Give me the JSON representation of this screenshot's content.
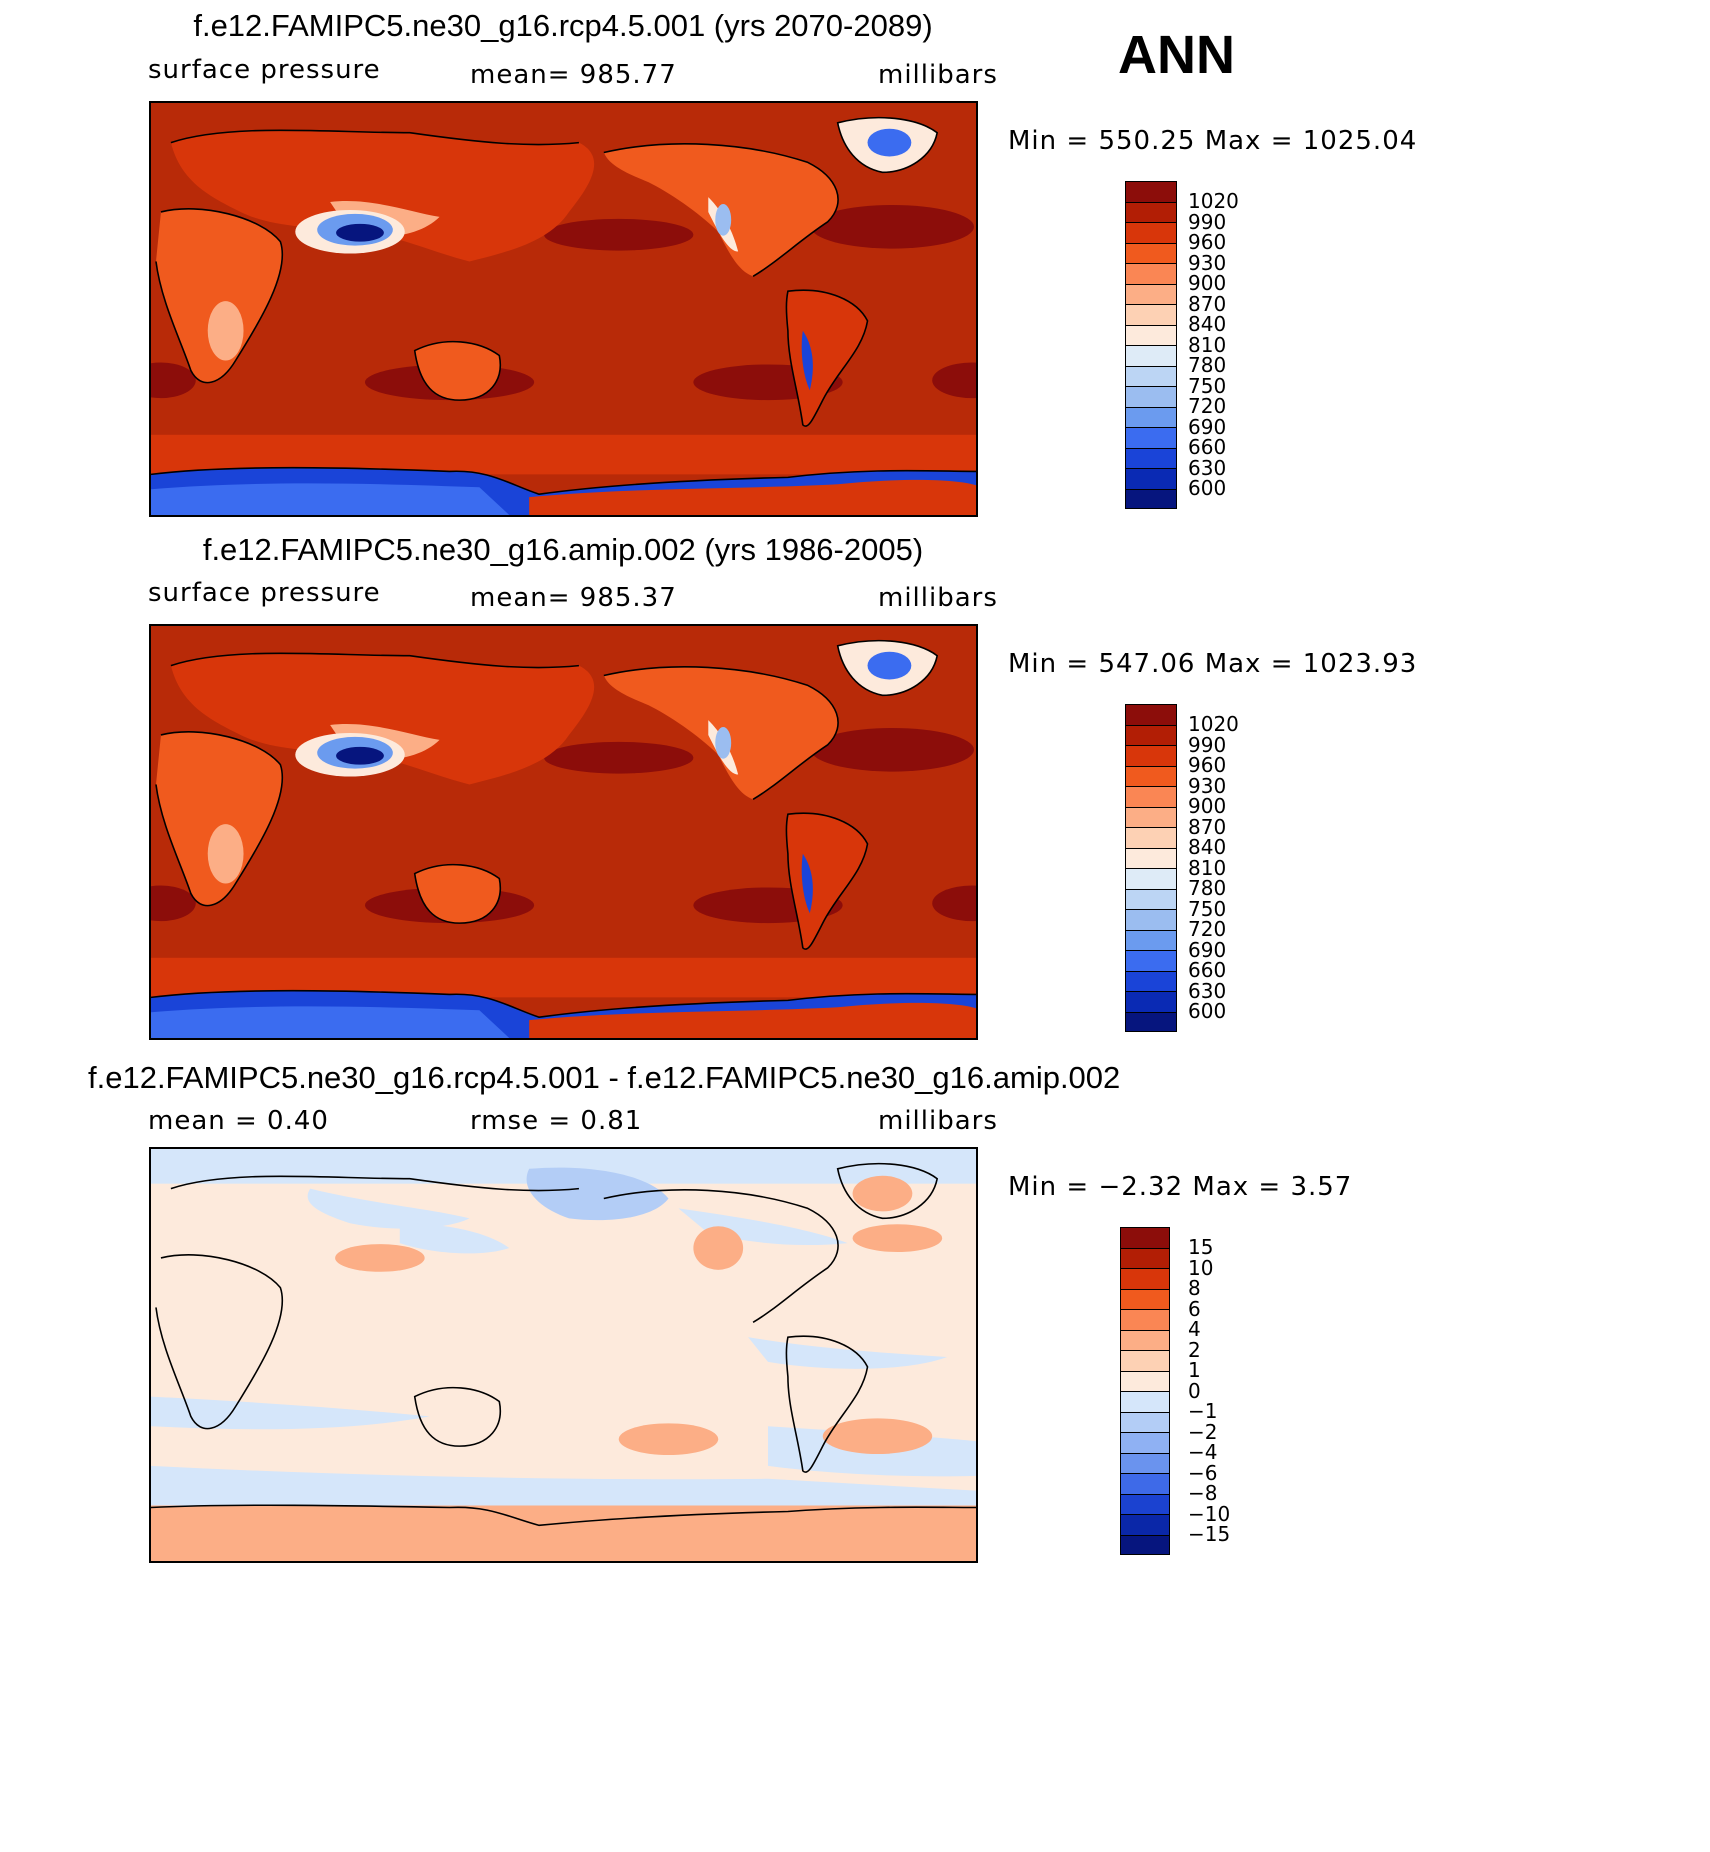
{
  "season": "ANN",
  "panels": [
    {
      "title": "f.e12.FAMIPC5.ne30_g16.rcp4.5.001 (yrs 2070-2089)",
      "variable": "surface pressure",
      "stat": "mean= 985.77",
      "units": "millibars",
      "minmax": "Min = 550.25 Max = 1025.04",
      "legend_labels": [
        "1020",
        "990",
        "960",
        "930",
        "900",
        "870",
        "840",
        "810",
        "780",
        "750",
        "720",
        "690",
        "660",
        "630",
        "600"
      ]
    },
    {
      "title": "f.e12.FAMIPC5.ne30_g16.amip.002 (yrs 1986-2005)",
      "variable": "surface pressure",
      "stat": "mean= 985.37",
      "units": "millibars",
      "minmax": "Min = 547.06 Max = 1023.93",
      "legend_labels": [
        "1020",
        "990",
        "960",
        "930",
        "900",
        "870",
        "840",
        "810",
        "780",
        "750",
        "720",
        "690",
        "660",
        "630",
        "600"
      ]
    },
    {
      "title": "f.e12.FAMIPC5.ne30_g16.rcp4.5.001 - f.e12.FAMIPC5.ne30_g16.amip.002",
      "variable": "mean =     0.40",
      "stat": "rmse =     0.81",
      "units": "millibars",
      "minmax": "Min =    −2.32 Max =     3.57",
      "legend_labels": [
        "15",
        "10",
        "8",
        "6",
        "4",
        "2",
        "1",
        "0",
        "−1",
        "−2",
        "−4",
        "−6",
        "−8",
        "−10",
        "−15"
      ]
    }
  ],
  "colors": {
    "abs_scale": [
      "#8c0d0a",
      "#b21e05",
      "#d8360a",
      "#f05a1e",
      "#fa8654",
      "#fcae86",
      "#fdd1b4",
      "#fdeadc",
      "#deebf7",
      "#bcd5f4",
      "#9bbdf0",
      "#6b9bef",
      "#3b6cf0",
      "#1a44d8",
      "#0a2ab4",
      "#06157e"
    ],
    "diff_scale": [
      "#8c0d0a",
      "#b21e05",
      "#d8360a",
      "#f05a1e",
      "#fa8654",
      "#fcae86",
      "#fdd1b4",
      "#fdeadc",
      "#d5e6fa",
      "#b3cdf6",
      "#8fb1f3",
      "#6a93ee",
      "#3e6ae8",
      "#1b42d0",
      "#0a27a8",
      "#06157e"
    ],
    "ocean": "#b82a08",
    "high_band": "#8c0d0a",
    "diff_bg": "#fdeadc"
  }
}
